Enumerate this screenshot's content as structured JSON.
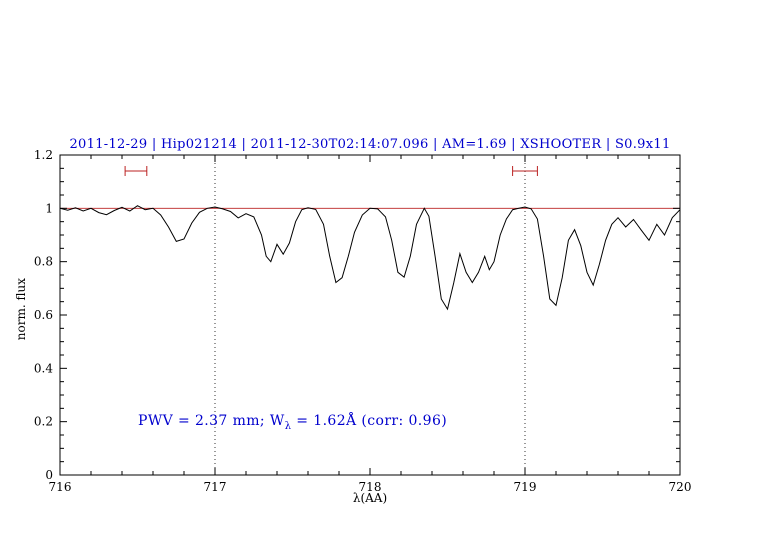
{
  "chart_data": {
    "type": "line",
    "title": "2011-12-29 | Hip021214 | 2011-12-30T02:14:07.096 | AM=1.69 | XSHOOTER | S0.9x11",
    "xlabel": "λ(AA)",
    "ylabel": "norm. flux",
    "xlim": [
      716,
      720
    ],
    "ylim": [
      0,
      1.2
    ],
    "x_ticks": [
      716,
      717,
      718,
      719,
      720
    ],
    "x_tick_labels": [
      "716",
      "717",
      "718",
      "719",
      "720"
    ],
    "y_ticks": [
      0,
      0.2,
      0.4,
      0.6,
      0.8,
      1,
      1.2
    ],
    "y_tick_labels": [
      "0",
      "0.2",
      "0.4",
      "0.6",
      "0.8",
      "1",
      "1.2"
    ],
    "grid": false,
    "legend": "none",
    "reference_line_y": 1.0,
    "dotted_vlines": [
      717,
      719
    ],
    "red_markers": [
      {
        "x1": 716.42,
        "x2": 716.56,
        "y": 1.14
      },
      {
        "x1": 718.92,
        "x2": 719.08,
        "y": 1.14
      }
    ],
    "annotation": {
      "pre": "PWV = 2.37 mm; W",
      "sub": "λ",
      "post": " = 1.62Å (corr: 0.96)"
    },
    "colors": {
      "title": "#0000cd",
      "annotation": "#0000cd",
      "reference_line": "#bb2222",
      "markers": "#bb2222",
      "spectrum": "#000000",
      "dotted_lines": "#333333"
    },
    "series": [
      {
        "name": "spectrum",
        "points": [
          [
            716.0,
            1.0
          ],
          [
            716.05,
            0.993
          ],
          [
            716.1,
            1.002
          ],
          [
            716.15,
            0.99
          ],
          [
            716.2,
            1.0
          ],
          [
            716.25,
            0.984
          ],
          [
            716.3,
            0.976
          ],
          [
            716.35,
            0.992
          ],
          [
            716.4,
            1.004
          ],
          [
            716.45,
            0.99
          ],
          [
            716.5,
            1.01
          ],
          [
            716.55,
            0.995
          ],
          [
            716.6,
            1.0
          ],
          [
            716.65,
            0.975
          ],
          [
            716.7,
            0.93
          ],
          [
            716.75,
            0.876
          ],
          [
            716.8,
            0.885
          ],
          [
            716.85,
            0.945
          ],
          [
            716.9,
            0.985
          ],
          [
            716.95,
            1.0
          ],
          [
            717.0,
            1.005
          ],
          [
            717.05,
            0.998
          ],
          [
            717.1,
            0.988
          ],
          [
            717.15,
            0.964
          ],
          [
            717.2,
            0.98
          ],
          [
            717.25,
            0.968
          ],
          [
            717.3,
            0.9
          ],
          [
            717.33,
            0.82
          ],
          [
            717.36,
            0.8
          ],
          [
            717.4,
            0.865
          ],
          [
            717.44,
            0.828
          ],
          [
            717.48,
            0.87
          ],
          [
            717.52,
            0.95
          ],
          [
            717.56,
            0.995
          ],
          [
            717.6,
            1.002
          ],
          [
            717.65,
            0.996
          ],
          [
            717.7,
            0.94
          ],
          [
            717.74,
            0.82
          ],
          [
            717.78,
            0.722
          ],
          [
            717.82,
            0.74
          ],
          [
            717.86,
            0.82
          ],
          [
            717.9,
            0.91
          ],
          [
            717.95,
            0.975
          ],
          [
            718.0,
            1.0
          ],
          [
            718.05,
            0.998
          ],
          [
            718.1,
            0.968
          ],
          [
            718.14,
            0.88
          ],
          [
            718.18,
            0.76
          ],
          [
            718.22,
            0.742
          ],
          [
            718.26,
            0.82
          ],
          [
            718.3,
            0.94
          ],
          [
            718.35,
            1.0
          ],
          [
            718.38,
            0.97
          ],
          [
            718.42,
            0.82
          ],
          [
            718.46,
            0.66
          ],
          [
            718.5,
            0.622
          ],
          [
            718.54,
            0.72
          ],
          [
            718.58,
            0.83
          ],
          [
            718.62,
            0.76
          ],
          [
            718.66,
            0.722
          ],
          [
            718.7,
            0.76
          ],
          [
            718.74,
            0.82
          ],
          [
            718.77,
            0.77
          ],
          [
            718.8,
            0.8
          ],
          [
            718.84,
            0.9
          ],
          [
            718.88,
            0.96
          ],
          [
            718.92,
            0.995
          ],
          [
            718.96,
            1.0
          ],
          [
            719.0,
            1.005
          ],
          [
            719.04,
            0.998
          ],
          [
            719.08,
            0.96
          ],
          [
            719.12,
            0.82
          ],
          [
            719.16,
            0.66
          ],
          [
            719.2,
            0.636
          ],
          [
            719.24,
            0.74
          ],
          [
            719.28,
            0.88
          ],
          [
            719.32,
            0.92
          ],
          [
            719.36,
            0.86
          ],
          [
            719.4,
            0.76
          ],
          [
            719.44,
            0.712
          ],
          [
            719.48,
            0.79
          ],
          [
            719.52,
            0.88
          ],
          [
            719.56,
            0.94
          ],
          [
            719.6,
            0.965
          ],
          [
            719.65,
            0.93
          ],
          [
            719.7,
            0.958
          ],
          [
            719.75,
            0.918
          ],
          [
            719.8,
            0.88
          ],
          [
            719.85,
            0.94
          ],
          [
            719.9,
            0.9
          ],
          [
            719.95,
            0.965
          ],
          [
            720.0,
            0.995
          ]
        ]
      }
    ]
  }
}
